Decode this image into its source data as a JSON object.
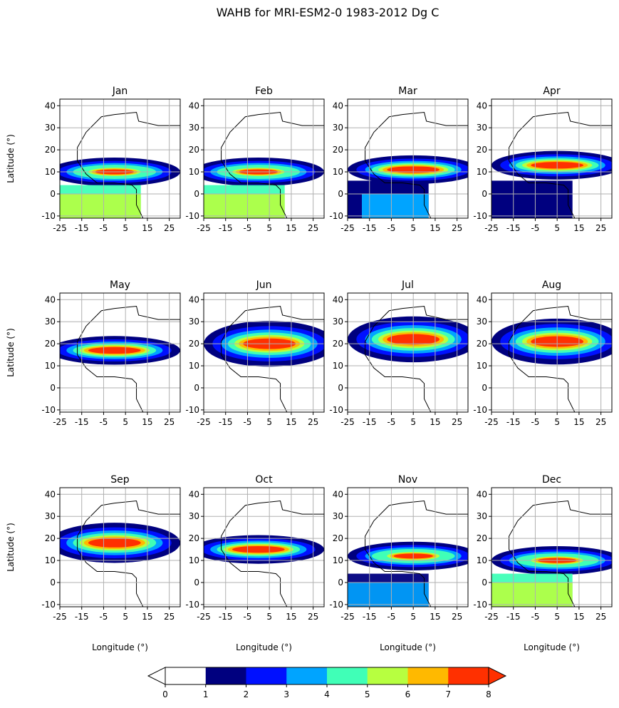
{
  "figure": {
    "title": "WAHB for MRI-ESM2-0 1983-2012 Dg C",
    "ylabel": "Latitude (°)",
    "xlabel": "Longitude (°)"
  },
  "chart_data": {
    "type": "heatmap",
    "panels": [
      "Jan",
      "Feb",
      "Mar",
      "Apr",
      "May",
      "Jun",
      "Jul",
      "Aug",
      "Sep",
      "Oct",
      "Nov",
      "Dec"
    ],
    "xlim": [
      -25,
      30
    ],
    "ylim": [
      -11,
      43
    ],
    "xticks": [
      -25,
      -15,
      -5,
      5,
      15,
      25
    ],
    "xtick_labels": [
      "-25",
      "-15",
      "-5",
      "5",
      "15",
      "25"
    ],
    "yticks": [
      -10,
      0,
      10,
      20,
      30,
      40
    ],
    "ytick_labels": [
      "-10",
      "0",
      "10",
      "20",
      "30",
      "40"
    ],
    "grid": true,
    "colorbar": {
      "levels": [
        0,
        1,
        2,
        3,
        4,
        5,
        6,
        7,
        8
      ],
      "tick_labels": [
        "0",
        "1",
        "2",
        "3",
        "4",
        "5",
        "6",
        "7",
        "8"
      ],
      "colors": [
        "#ffffff",
        "#00007f",
        "#0010ff",
        "#00a4ff",
        "#40ffb7",
        "#b7ff40",
        "#ffb900",
        "#ff3000"
      ],
      "extend": "both"
    },
    "monthly_hotspot": [
      {
        "month": "Jan",
        "lat_center": 10,
        "lon_center": 0,
        "peak": 7
      },
      {
        "month": "Feb",
        "lat_center": 10,
        "lon_center": 0,
        "peak": 7
      },
      {
        "month": "Mar",
        "lat_center": 11,
        "lon_center": 5,
        "peak": 8
      },
      {
        "month": "Apr",
        "lat_center": 13,
        "lon_center": 5,
        "peak": 8
      },
      {
        "month": "May",
        "lat_center": 17,
        "lon_center": 0,
        "peak": 8
      },
      {
        "month": "Jun",
        "lat_center": 20,
        "lon_center": 5,
        "peak": 8
      },
      {
        "month": "Jul",
        "lat_center": 22,
        "lon_center": 5,
        "peak": 8
      },
      {
        "month": "Aug",
        "lat_center": 21,
        "lon_center": 5,
        "peak": 8
      },
      {
        "month": "Sep",
        "lat_center": 18,
        "lon_center": 0,
        "peak": 8
      },
      {
        "month": "Oct",
        "lat_center": 15,
        "lon_center": 0,
        "peak": 8
      },
      {
        "month": "Nov",
        "lat_center": 12,
        "lon_center": 5,
        "peak": 7
      },
      {
        "month": "Dec",
        "lat_center": 10,
        "lon_center": 5,
        "peak": 7
      }
    ]
  }
}
